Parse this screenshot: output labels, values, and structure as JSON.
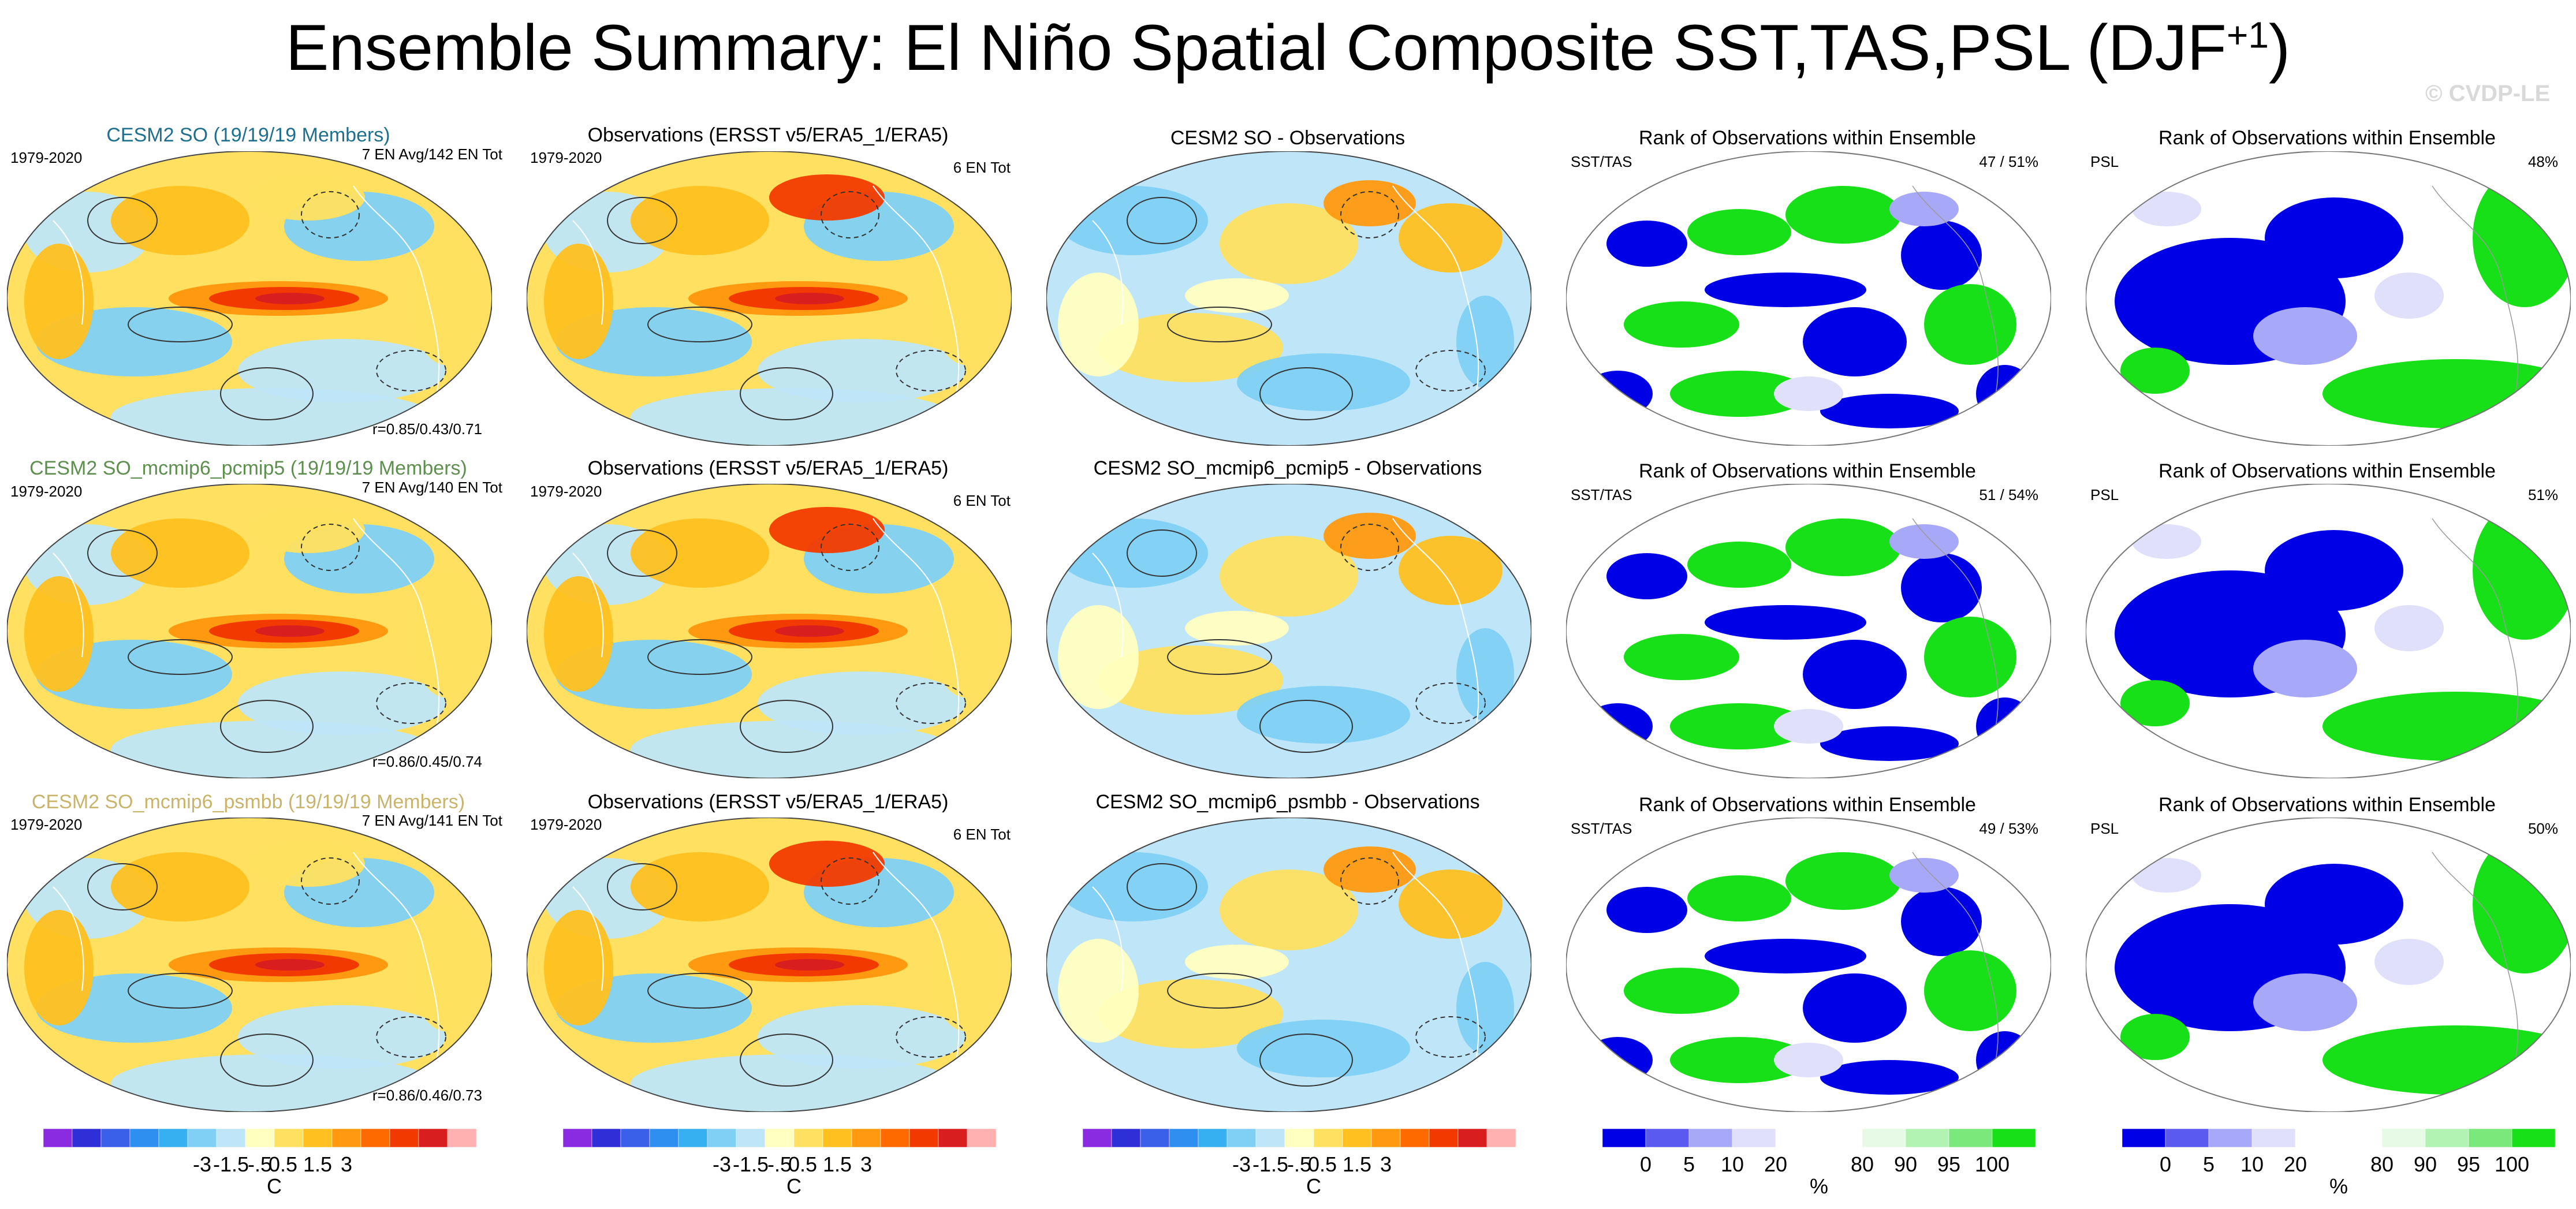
{
  "title": "Ensemble Summary: El Niño Spatial Composite SST,TAS,PSL (DJF",
  "title_sup": "+1",
  "title_close": ")",
  "watermark": "© CVDP-LE",
  "period": "1979-2020",
  "colors": {
    "model1": "#1f6f8f",
    "model2": "#5f8f4f",
    "model3": "#c8b46a",
    "land_line": "#000000",
    "coast_white": "#ffffff"
  },
  "rows": [
    {
      "model_title": "CESM2 SO (19/19/19 Members)",
      "model_avg": "7 EN Avg/142 EN Tot",
      "model_r": "r=0.85/0.43/0.71",
      "obs_title": "Observations (ERSST v5/ERA5_1/ERA5)",
      "obs_tot": "6 EN Tot",
      "diff_title": "CESM2 SO - Observations",
      "rank1_title": "Rank of Observations within Ensemble",
      "rank1_var": "SST/TAS",
      "rank1_pct": "47 /  51%",
      "rank2_title": "Rank of Observations within Ensemble",
      "rank2_var": "PSL",
      "rank2_pct": "48%"
    },
    {
      "model_title": "CESM2 SO_mcmip6_pcmip5 (19/19/19 Members)",
      "model_avg": "7 EN Avg/140 EN Tot",
      "model_r": "r=0.86/0.45/0.74",
      "obs_title": "Observations (ERSST v5/ERA5_1/ERA5)",
      "obs_tot": "6 EN Tot",
      "diff_title": "CESM2 SO_mcmip6_pcmip5 - Observations",
      "rank1_title": "Rank of Observations within Ensemble",
      "rank1_var": "SST/TAS",
      "rank1_pct": "51 /  54%",
      "rank2_title": "Rank of Observations within Ensemble",
      "rank2_var": "PSL",
      "rank2_pct": "51%"
    },
    {
      "model_title": "CESM2 SO_mcmip6_psmbb (19/19/19 Members)",
      "model_avg": "7 EN Avg/141 EN Tot",
      "model_r": "r=0.86/0.46/0.73",
      "obs_title": "Observations (ERSST v5/ERA5_1/ERA5)",
      "obs_tot": "6 EN Tot",
      "diff_title": "CESM2 SO_mcmip6_psmbb - Observations",
      "rank1_title": "Rank of Observations within Ensemble",
      "rank1_var": "SST/TAS",
      "rank1_pct": "49 /  53%",
      "rank2_title": "Rank of Observations within Ensemble",
      "rank2_var": "PSL",
      "rank2_pct": "50%"
    }
  ],
  "chart_data": {
    "type": "heatmap",
    "temp_colorbar": {
      "colors": [
        "#8a2be2",
        "#2f2fd8",
        "#3a5fe8",
        "#2f8ff0",
        "#36b0f0",
        "#7fd0f4",
        "#bfe6f8",
        "#ffffc0",
        "#ffe060",
        "#ffc020",
        "#ff9a10",
        "#ff6a00",
        "#f23a00",
        "#d81e1e",
        "#ffb0b0"
      ],
      "tick_labels": [
        "-3",
        "-1.5",
        "-.5",
        "0",
        ".5",
        "1.5",
        "3"
      ],
      "unit": "C"
    },
    "rank_colorbar": {
      "colors": [
        "#0000e6",
        "#5a5af0",
        "#a8a8f8",
        "#e0e0fa",
        "#ffffff",
        "#ffffff",
        "#e6fae6",
        "#b2f2b2",
        "#7ae87a",
        "#18e018"
      ],
      "tick_labels": [
        "0",
        "5",
        "10",
        "20",
        "80",
        "90",
        "95",
        "100"
      ],
      "unit": "%"
    }
  }
}
